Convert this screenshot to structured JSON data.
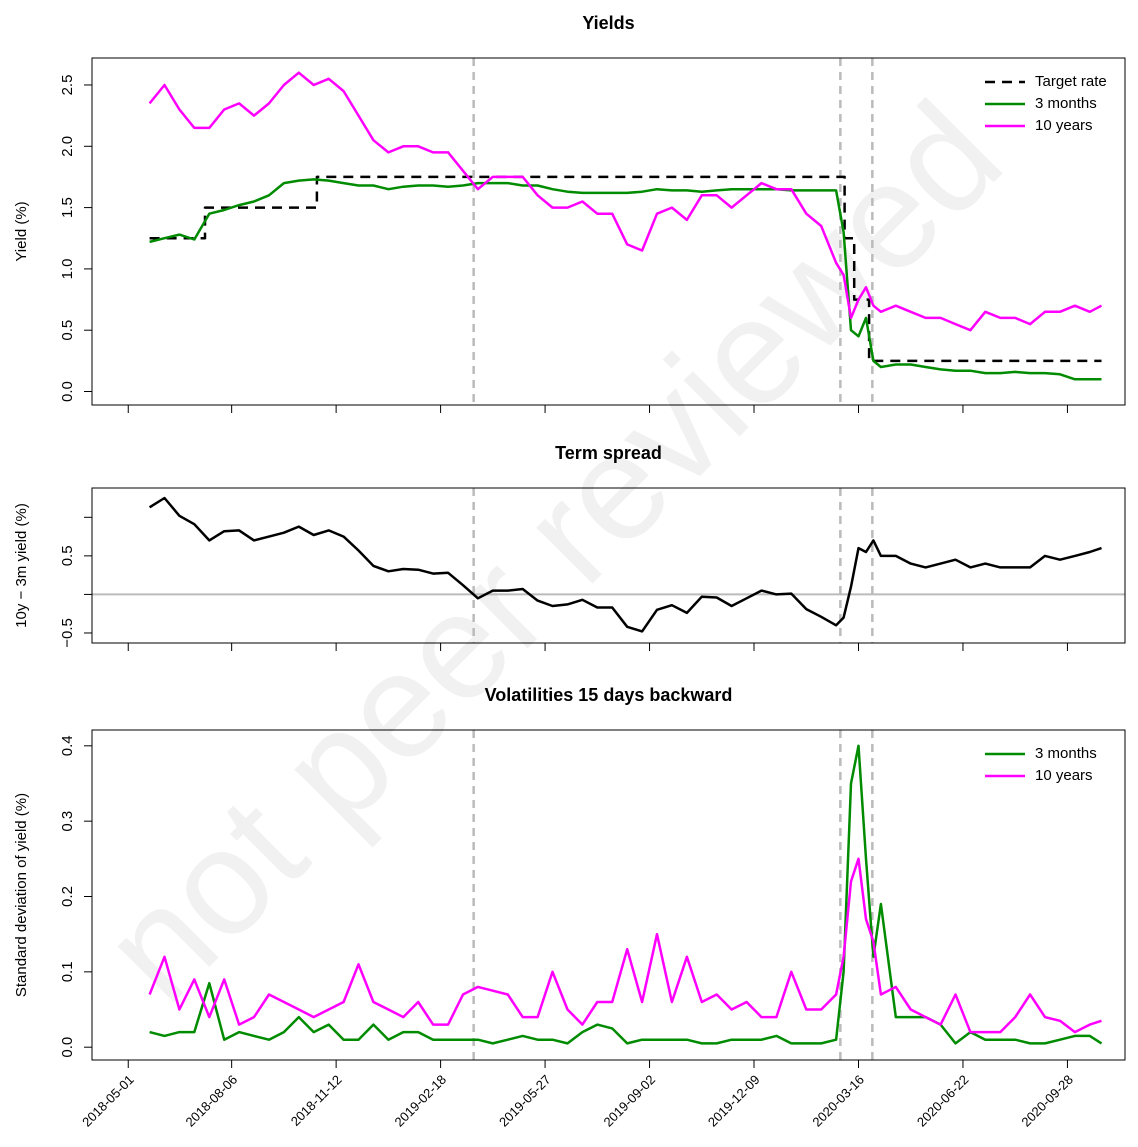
{
  "watermark": "not peer reviewed",
  "chart_data": [
    {
      "type": "line",
      "title": "Yields",
      "ylabel": "Yield (%)",
      "x": [
        "2018-05-21",
        "2018-06-04",
        "2018-06-18",
        "2018-07-02",
        "2018-07-16",
        "2018-07-30",
        "2018-08-13",
        "2018-08-27",
        "2018-09-10",
        "2018-09-24",
        "2018-10-08",
        "2018-10-22",
        "2018-11-05",
        "2018-11-19",
        "2018-12-03",
        "2018-12-17",
        "2018-12-31",
        "2019-01-14",
        "2019-01-28",
        "2019-02-11",
        "2019-02-25",
        "2019-03-11",
        "2019-03-25",
        "2019-04-08",
        "2019-04-22",
        "2019-05-06",
        "2019-05-20",
        "2019-06-03",
        "2019-06-17",
        "2019-07-01",
        "2019-07-15",
        "2019-07-29",
        "2019-08-12",
        "2019-08-26",
        "2019-09-09",
        "2019-09-23",
        "2019-10-07",
        "2019-10-21",
        "2019-11-04",
        "2019-11-18",
        "2019-12-02",
        "2019-12-16",
        "2019-12-30",
        "2020-01-13",
        "2020-01-27",
        "2020-02-10",
        "2020-02-24",
        "2020-03-02",
        "2020-03-09",
        "2020-03-16",
        "2020-03-23",
        "2020-03-30",
        "2020-04-06",
        "2020-04-20",
        "2020-05-04",
        "2020-05-18",
        "2020-06-01",
        "2020-06-15",
        "2020-06-29",
        "2020-07-13",
        "2020-07-27",
        "2020-08-10",
        "2020-08-24",
        "2020-09-07",
        "2020-09-21",
        "2020-10-05",
        "2020-10-19",
        "2020-10-30"
      ],
      "xlim": [
        "2018-03-28",
        "2020-11-21"
      ],
      "ylim": [
        -0.11,
        2.72
      ],
      "yticks": [
        {
          "value": 0,
          "label": "0.0"
        },
        0.5,
        {
          "value": 1,
          "label": "1.0"
        },
        1.5,
        {
          "value": 2,
          "label": "2.0"
        },
        2.5
      ],
      "vlines": [
        "2019-03-21",
        "2020-02-28",
        "2020-03-29"
      ],
      "legend": "top-right",
      "series": [
        {
          "name": "Target rate",
          "color": "#000000",
          "dash": true,
          "x": [
            "2018-05-21",
            "2018-07-12",
            "2018-07-12",
            "2018-10-25",
            "2018-10-25",
            "2020-03-03",
            "2020-03-03",
            "2020-03-12",
            "2020-03-12",
            "2020-03-26",
            "2020-03-26",
            "2020-10-30"
          ],
          "values": [
            1.25,
            1.25,
            1.5,
            1.5,
            1.75,
            1.75,
            1.25,
            1.25,
            0.75,
            0.75,
            0.25,
            0.25
          ]
        },
        {
          "name": "3 months",
          "color": "#008b00",
          "values": [
            1.22,
            1.25,
            1.28,
            1.24,
            1.45,
            1.48,
            1.52,
            1.55,
            1.6,
            1.7,
            1.72,
            1.73,
            1.72,
            1.7,
            1.68,
            1.68,
            1.65,
            1.67,
            1.68,
            1.68,
            1.67,
            1.68,
            1.7,
            1.7,
            1.7,
            1.68,
            1.68,
            1.65,
            1.63,
            1.62,
            1.62,
            1.62,
            1.62,
            1.63,
            1.65,
            1.64,
            1.64,
            1.63,
            1.64,
            1.65,
            1.65,
            1.65,
            1.65,
            1.64,
            1.64,
            1.64,
            1.64,
            1.3,
            0.5,
            0.45,
            0.6,
            0.25,
            0.2,
            0.22,
            0.22,
            0.2,
            0.18,
            0.17,
            0.17,
            0.15,
            0.15,
            0.16,
            0.15,
            0.15,
            0.14,
            0.1,
            0.1,
            0.1
          ]
        },
        {
          "name": "10 years",
          "color": "#ff00ff",
          "values": [
            2.35,
            2.5,
            2.3,
            2.15,
            2.15,
            2.3,
            2.35,
            2.25,
            2.35,
            2.5,
            2.6,
            2.5,
            2.55,
            2.45,
            2.25,
            2.05,
            1.95,
            2.0,
            2.0,
            1.95,
            1.95,
            1.8,
            1.65,
            1.75,
            1.75,
            1.75,
            1.6,
            1.5,
            1.5,
            1.55,
            1.45,
            1.45,
            1.2,
            1.15,
            1.45,
            1.5,
            1.4,
            1.6,
            1.6,
            1.5,
            1.6,
            1.7,
            1.65,
            1.65,
            1.45,
            1.35,
            1.05,
            0.95,
            0.6,
            0.75,
            0.85,
            0.7,
            0.65,
            0.7,
            0.65,
            0.6,
            0.6,
            0.55,
            0.5,
            0.65,
            0.6,
            0.6,
            0.55,
            0.65,
            0.65,
            0.7,
            0.65,
            0.7
          ]
        }
      ]
    },
    {
      "type": "line",
      "title": "Term spread",
      "ylabel": "10y − 3m yield (%)",
      "x": [
        "2018-05-21",
        "2018-06-04",
        "2018-06-18",
        "2018-07-02",
        "2018-07-16",
        "2018-07-30",
        "2018-08-13",
        "2018-08-27",
        "2018-09-10",
        "2018-09-24",
        "2018-10-08",
        "2018-10-22",
        "2018-11-05",
        "2018-11-19",
        "2018-12-03",
        "2018-12-17",
        "2018-12-31",
        "2019-01-14",
        "2019-01-28",
        "2019-02-11",
        "2019-02-25",
        "2019-03-11",
        "2019-03-25",
        "2019-04-08",
        "2019-04-22",
        "2019-05-06",
        "2019-05-20",
        "2019-06-03",
        "2019-06-17",
        "2019-07-01",
        "2019-07-15",
        "2019-07-29",
        "2019-08-12",
        "2019-08-26",
        "2019-09-09",
        "2019-09-23",
        "2019-10-07",
        "2019-10-21",
        "2019-11-04",
        "2019-11-18",
        "2019-12-02",
        "2019-12-16",
        "2019-12-30",
        "2020-01-13",
        "2020-01-27",
        "2020-02-10",
        "2020-02-24",
        "2020-03-02",
        "2020-03-09",
        "2020-03-16",
        "2020-03-23",
        "2020-03-30",
        "2020-04-06",
        "2020-04-20",
        "2020-05-04",
        "2020-05-18",
        "2020-06-01",
        "2020-06-15",
        "2020-06-29",
        "2020-07-13",
        "2020-07-27",
        "2020-08-10",
        "2020-08-24",
        "2020-09-07",
        "2020-09-21",
        "2020-10-05",
        "2020-10-19",
        "2020-10-30"
      ],
      "xlim": [
        "2018-03-28",
        "2020-11-21"
      ],
      "ylim": [
        -0.63,
        1.38
      ],
      "yticks": [
        {
          "value": -0.5,
          "label": "−0.5"
        },
        {
          "value": 0,
          "label": null
        },
        0.5,
        {
          "value": 1,
          "label": null
        }
      ],
      "hline": 0,
      "vlines": [
        "2019-03-21",
        "2020-02-28",
        "2020-03-29"
      ],
      "series": [
        {
          "color": "#000000",
          "values": [
            1.13,
            1.25,
            1.02,
            0.91,
            0.7,
            0.82,
            0.83,
            0.7,
            0.75,
            0.8,
            0.88,
            0.77,
            0.83,
            0.75,
            0.57,
            0.37,
            0.3,
            0.33,
            0.32,
            0.27,
            0.28,
            0.12,
            -0.05,
            0.05,
            0.05,
            0.07,
            -0.08,
            -0.15,
            -0.13,
            -0.07,
            -0.17,
            -0.17,
            -0.42,
            -0.48,
            -0.2,
            -0.14,
            -0.24,
            -0.03,
            -0.04,
            -0.15,
            -0.05,
            0.05,
            0.0,
            0.01,
            -0.19,
            -0.29,
            -0.4,
            -0.3,
            0.1,
            0.6,
            0.55,
            0.7,
            0.5,
            0.5,
            0.4,
            0.35,
            0.4,
            0.45,
            0.35,
            0.4,
            0.35,
            0.35,
            0.35,
            0.5,
            0.45,
            0.5,
            0.55,
            0.6
          ]
        }
      ]
    },
    {
      "type": "line",
      "title": "Volatilities 15 days backward",
      "ylabel": "Standard deviation of yield (%)",
      "x": [
        "2018-05-21",
        "2018-06-04",
        "2018-06-18",
        "2018-07-02",
        "2018-07-16",
        "2018-07-30",
        "2018-08-13",
        "2018-08-27",
        "2018-09-10",
        "2018-09-24",
        "2018-10-08",
        "2018-10-22",
        "2018-11-05",
        "2018-11-19",
        "2018-12-03",
        "2018-12-17",
        "2018-12-31",
        "2019-01-14",
        "2019-01-28",
        "2019-02-11",
        "2019-02-25",
        "2019-03-11",
        "2019-03-25",
        "2019-04-08",
        "2019-04-22",
        "2019-05-06",
        "2019-05-20",
        "2019-06-03",
        "2019-06-17",
        "2019-07-01",
        "2019-07-15",
        "2019-07-29",
        "2019-08-12",
        "2019-08-26",
        "2019-09-09",
        "2019-09-23",
        "2019-10-07",
        "2019-10-21",
        "2019-11-04",
        "2019-11-18",
        "2019-12-02",
        "2019-12-16",
        "2019-12-30",
        "2020-01-13",
        "2020-01-27",
        "2020-02-10",
        "2020-02-24",
        "2020-03-02",
        "2020-03-09",
        "2020-03-16",
        "2020-03-23",
        "2020-03-30",
        "2020-04-06",
        "2020-04-20",
        "2020-05-04",
        "2020-05-18",
        "2020-06-01",
        "2020-06-15",
        "2020-06-29",
        "2020-07-13",
        "2020-07-27",
        "2020-08-10",
        "2020-08-24",
        "2020-09-07",
        "2020-09-21",
        "2020-10-05",
        "2020-10-19",
        "2020-10-30"
      ],
      "xlim": [
        "2018-03-28",
        "2020-11-21"
      ],
      "xticks": [
        "2018-05-01",
        "2018-08-06",
        "2018-11-12",
        "2019-02-18",
        "2019-05-27",
        "2019-09-02",
        "2019-12-09",
        "2020-03-16",
        "2020-06-22",
        "2020-09-28"
      ],
      "ylim": [
        -0.017,
        0.421
      ],
      "yticks": [
        {
          "value": 0,
          "label": "0.0"
        },
        0.1,
        0.2,
        0.3,
        0.4
      ],
      "vlines": [
        "2019-03-21",
        "2020-02-28",
        "2020-03-29"
      ],
      "legend": "top-right",
      "series": [
        {
          "name": "3 months",
          "color": "#008b00",
          "values": [
            0.02,
            0.015,
            0.02,
            0.02,
            0.085,
            0.01,
            0.02,
            0.015,
            0.01,
            0.02,
            0.04,
            0.02,
            0.03,
            0.01,
            0.01,
            0.03,
            0.01,
            0.02,
            0.02,
            0.01,
            0.01,
            0.01,
            0.01,
            0.005,
            0.01,
            0.015,
            0.01,
            0.01,
            0.005,
            0.02,
            0.03,
            0.025,
            0.005,
            0.01,
            0.01,
            0.01,
            0.01,
            0.005,
            0.005,
            0.01,
            0.01,
            0.01,
            0.015,
            0.005,
            0.005,
            0.005,
            0.01,
            0.1,
            0.35,
            0.4,
            0.25,
            0.12,
            0.19,
            0.04,
            0.04,
            0.04,
            0.03,
            0.005,
            0.02,
            0.01,
            0.01,
            0.01,
            0.005,
            0.005,
            0.01,
            0.015,
            0.015,
            0.005
          ]
        },
        {
          "name": "10 years",
          "color": "#ff00ff",
          "values": [
            0.07,
            0.12,
            0.05,
            0.09,
            0.04,
            0.09,
            0.03,
            0.04,
            0.07,
            0.06,
            0.05,
            0.04,
            0.05,
            0.06,
            0.11,
            0.06,
            0.05,
            0.04,
            0.06,
            0.03,
            0.03,
            0.07,
            0.08,
            0.075,
            0.07,
            0.04,
            0.04,
            0.1,
            0.05,
            0.03,
            0.06,
            0.06,
            0.13,
            0.06,
            0.15,
            0.06,
            0.12,
            0.06,
            0.07,
            0.05,
            0.06,
            0.04,
            0.04,
            0.1,
            0.05,
            0.05,
            0.07,
            0.12,
            0.22,
            0.25,
            0.17,
            0.14,
            0.07,
            0.08,
            0.05,
            0.04,
            0.03,
            0.07,
            0.02,
            0.02,
            0.02,
            0.04,
            0.07,
            0.04,
            0.035,
            0.02,
            0.03,
            0.035
          ]
        }
      ]
    }
  ]
}
